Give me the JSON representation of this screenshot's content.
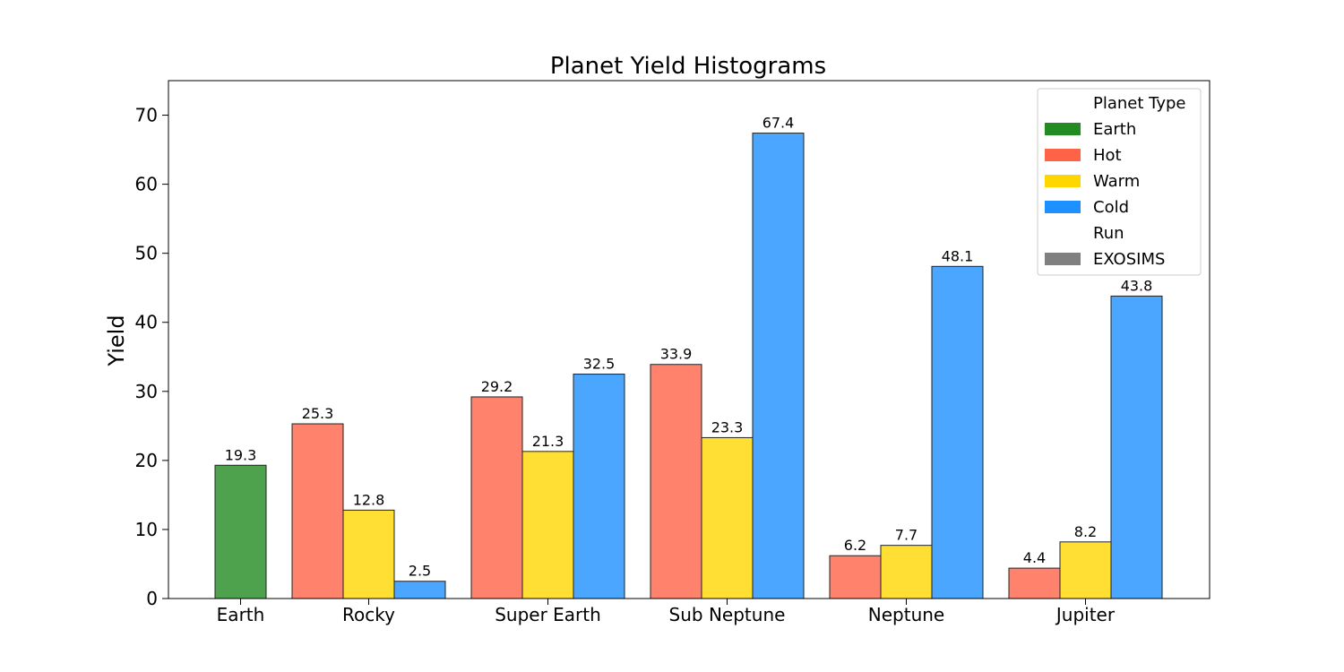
{
  "chart_data": {
    "type": "bar",
    "title": "Planet Yield Histograms",
    "xlabel": "",
    "ylabel": "Yield",
    "ylim": [
      0,
      75
    ],
    "yticks": [
      0,
      10,
      20,
      30,
      40,
      50,
      60,
      70
    ],
    "categories": [
      "Earth",
      "Rocky",
      "Super Earth",
      "Sub Neptune",
      "Neptune",
      "Jupiter"
    ],
    "series": [
      {
        "name": "Earth",
        "color": "#228B22",
        "values": [
          19.3,
          null,
          null,
          null,
          null,
          null
        ]
      },
      {
        "name": "Hot",
        "color": "#FF6347",
        "values": [
          null,
          25.3,
          29.2,
          33.9,
          6.2,
          4.4
        ]
      },
      {
        "name": "Warm",
        "color": "#FFD700",
        "values": [
          null,
          12.8,
          21.3,
          23.3,
          7.7,
          8.2
        ]
      },
      {
        "name": "Cold",
        "color": "#1E90FF",
        "values": [
          null,
          2.5,
          32.5,
          67.4,
          48.1,
          43.8
        ]
      }
    ],
    "bar_labels": [
      [
        "19.3"
      ],
      [
        "25.3",
        "12.8",
        "2.5"
      ],
      [
        "29.2",
        "21.3",
        "32.5"
      ],
      [
        "33.9",
        "23.3",
        "67.4"
      ],
      [
        "6.2",
        "7.7",
        "48.1"
      ],
      [
        "4.4",
        "8.2",
        "43.8"
      ]
    ],
    "grid": false,
    "legend": {
      "placement": "top-right",
      "sections": [
        {
          "heading": "Planet Type",
          "entries": [
            {
              "label": "Earth",
              "color": "#228B22"
            },
            {
              "label": "Hot",
              "color": "#FF6347"
            },
            {
              "label": "Warm",
              "color": "#FFD700"
            },
            {
              "label": "Cold",
              "color": "#1E90FF"
            }
          ]
        },
        {
          "heading": "Run",
          "entries": [
            {
              "label": "EXOSIMS",
              "color": "#808080"
            }
          ]
        }
      ]
    }
  }
}
